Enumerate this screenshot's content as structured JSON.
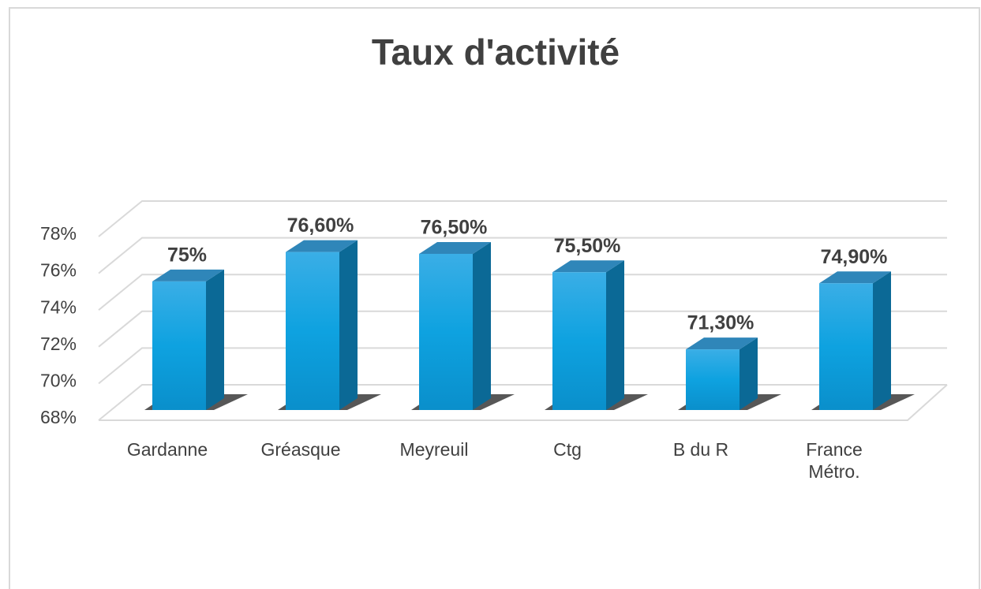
{
  "chart_data": {
    "type": "bar3d",
    "title": "Taux d'activité",
    "categories": [
      "Gardanne",
      "Gréasque",
      "Meyreuil",
      "Ctg",
      "B du R",
      "France Métro."
    ],
    "values": [
      75,
      76.6,
      76.5,
      75.5,
      71.3,
      74.9
    ],
    "value_labels": [
      "75%",
      "76,60%",
      "76,50%",
      "75,50%",
      "71,30%",
      "74,90%"
    ],
    "color": "#129fdc",
    "ylim": [
      68,
      78
    ],
    "yticks": [
      {
        "value": 68,
        "label": "68%"
      },
      {
        "value": 70,
        "label": "70%"
      },
      {
        "value": 72,
        "label": "72%"
      },
      {
        "value": 74,
        "label": "74%"
      },
      {
        "value": 76,
        "label": "76%"
      },
      {
        "value": 78,
        "label": "78%"
      }
    ],
    "grid": true
  }
}
